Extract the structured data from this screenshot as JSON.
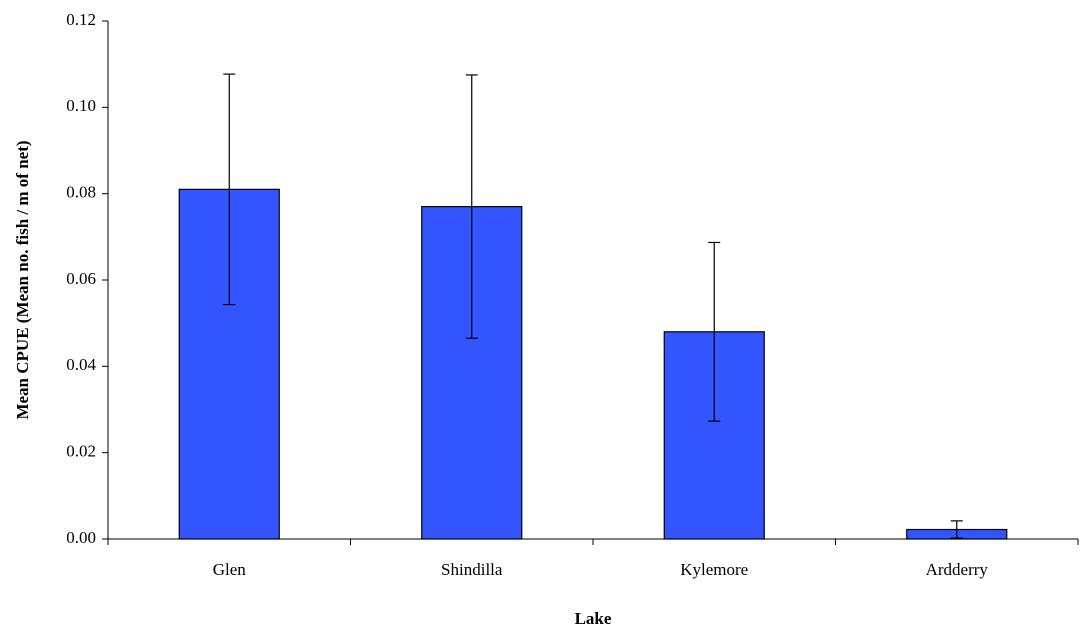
{
  "chart_data": {
    "type": "bar",
    "x_label": "Lake",
    "y_label": "Mean CPUE (Mean no. fish / m of net)",
    "categories": [
      "Glen",
      "Shindilla",
      "Kylemore",
      "Ardderry"
    ],
    "values": [
      0.081,
      0.077,
      0.048,
      0.0022
    ],
    "errors": [
      0.0267,
      0.0305,
      0.0207,
      0.002
    ],
    "color": "#3355ff",
    "ylim": [
      0,
      0.12
    ],
    "yticks": [
      {
        "value": 0,
        "label": "0.00"
      },
      {
        "value": 0.02,
        "label": "0.02"
      },
      {
        "value": 0.04,
        "label": "0.04"
      },
      {
        "value": 0.06,
        "label": "0.06"
      },
      {
        "value": 0.08,
        "label": "0.08"
      },
      {
        "value": 0.1,
        "label": "0.10"
      },
      {
        "value": 0.12,
        "label": "0.12"
      }
    ],
    "grid": false
  }
}
